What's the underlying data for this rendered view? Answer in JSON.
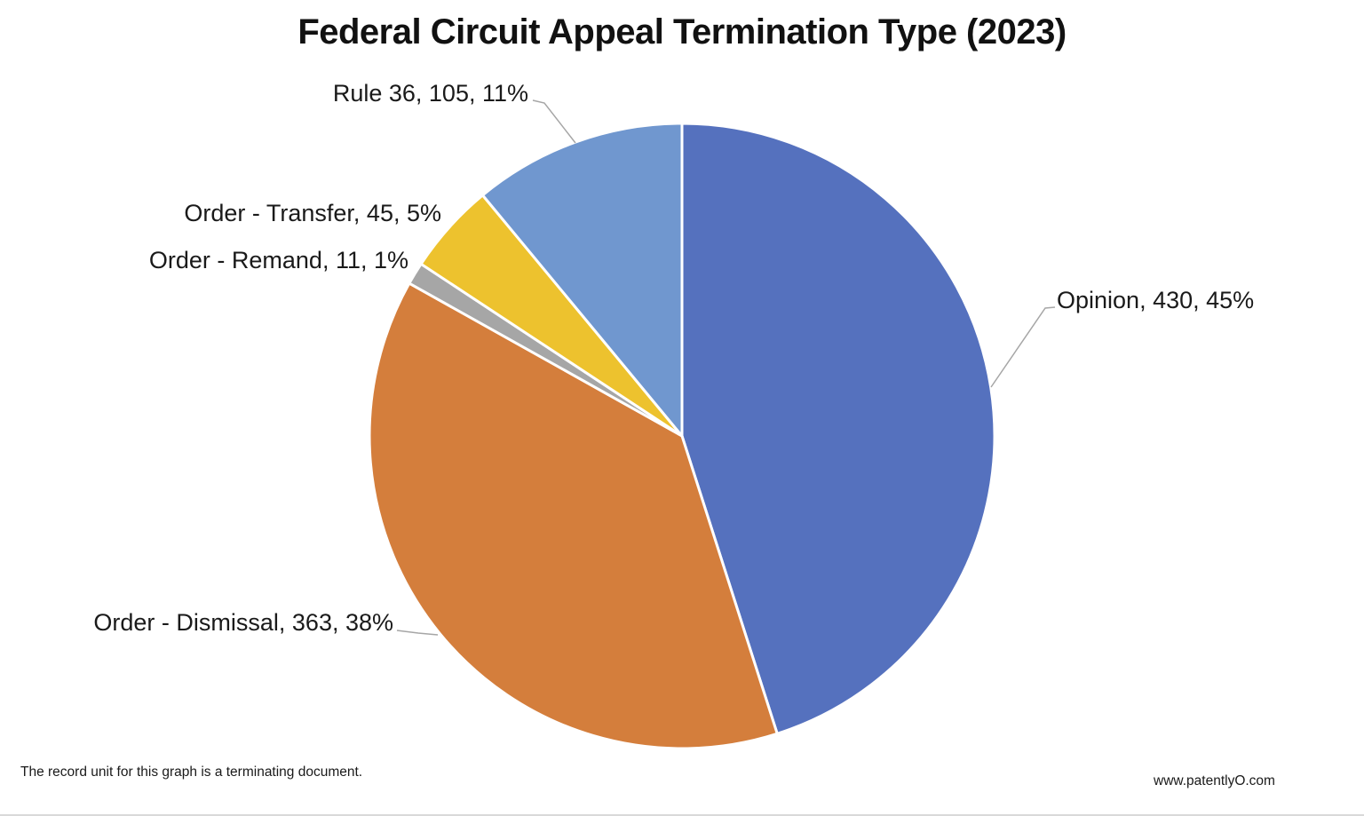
{
  "title": "Federal Circuit Appeal Termination Type (2023)",
  "footnote": "The record unit for this graph is a terminating document.",
  "source": "www.patentlyO.com",
  "chart_data": {
    "type": "pie",
    "title": "Federal Circuit Appeal Termination Type (2023)",
    "categories": [
      "Opinion",
      "Order - Dismissal",
      "Order - Remand",
      "Order - Transfer",
      "Rule 36"
    ],
    "values": [
      430,
      363,
      11,
      45,
      105
    ],
    "total": 954,
    "percent_labels": [
      "45%",
      "38%",
      "1%",
      "5%",
      "11%"
    ],
    "labels": [
      "Opinion, 430, 45%",
      "Order - Dismissal, 363, 38%",
      "Order - Remand, 11, 1%",
      "Order - Transfer, 45, 5%",
      "Rule 36, 105, 11%"
    ],
    "colors": [
      "#5571BE",
      "#D47E3C",
      "#A6A6A6",
      "#EDC22E",
      "#7097CF"
    ],
    "start_angle_deg": 0,
    "direction": "clockwise",
    "legend_position": "none",
    "slice_border_color": "#FFFFFF",
    "leader_line_color": "#A6A6A6"
  }
}
